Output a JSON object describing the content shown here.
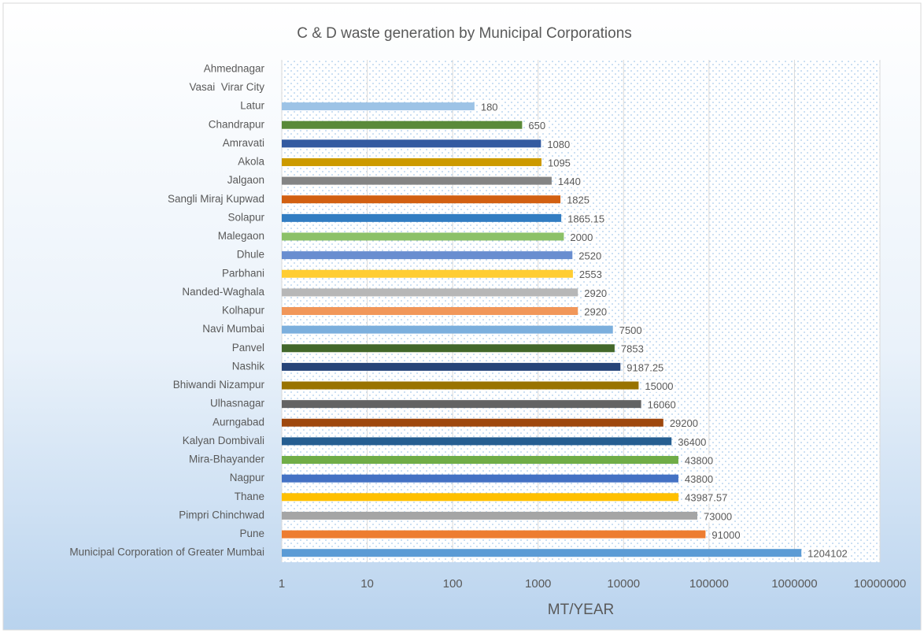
{
  "chart_data": {
    "type": "barh",
    "title": "C & D waste generation by Municipal Corporations",
    "x_label": "MT/YEAR",
    "categories": [
      "Ahmednagar",
      "Vasai  Virar City",
      "Latur",
      "Chandrapur",
      "Amravati",
      "Akola",
      "Jalgaon",
      "Sangli Miraj Kupwad",
      "Solapur",
      "Malegaon",
      "Dhule",
      "Parbhani",
      "Nanded-Waghala",
      "Kolhapur",
      "Navi Mumbai",
      "Panvel",
      "Nashik",
      "Bhiwandi Nizampur",
      "Ulhasnagar",
      "Aurngabad",
      "Kalyan Dombivali",
      "Mira-Bhayander",
      "Nagpur",
      "Thane",
      "Pimpri Chinchwad",
      "Pune",
      "Municipal Corporation of Greater Mumbai"
    ],
    "values": [
      null,
      null,
      180,
      650,
      1080,
      1095,
      1440,
      1825,
      1865.15,
      2000,
      2520,
      2553,
      2920,
      2920,
      7500,
      7853,
      9187.25,
      15000,
      16060,
      29200,
      36400,
      43800,
      43800,
      43987.57,
      73000,
      91000,
      1204102
    ],
    "colors": [
      "#5b9bd5",
      "#ed7d31",
      "#9dc3e6",
      "#5a8a39",
      "#335aa1",
      "#cc9a00",
      "#848484",
      "#d26012",
      "#327dc2",
      "#8cc168",
      "#698ed0",
      "#ffcd33",
      "#b7b7b7",
      "#f1975a",
      "#7cafdd",
      "#43682b",
      "#264478",
      "#997300",
      "#636363",
      "#9e480e",
      "#255e91",
      "#70ad47",
      "#4472c4",
      "#ffc000",
      "#a5a5a5",
      "#ed7d31",
      "#5b9bd5"
    ],
    "xlim": [
      1,
      10000000
    ],
    "xticks": [
      1,
      10,
      100,
      1000,
      10000,
      100000,
      1000000,
      10000000
    ],
    "log_x": true,
    "grid": true
  }
}
